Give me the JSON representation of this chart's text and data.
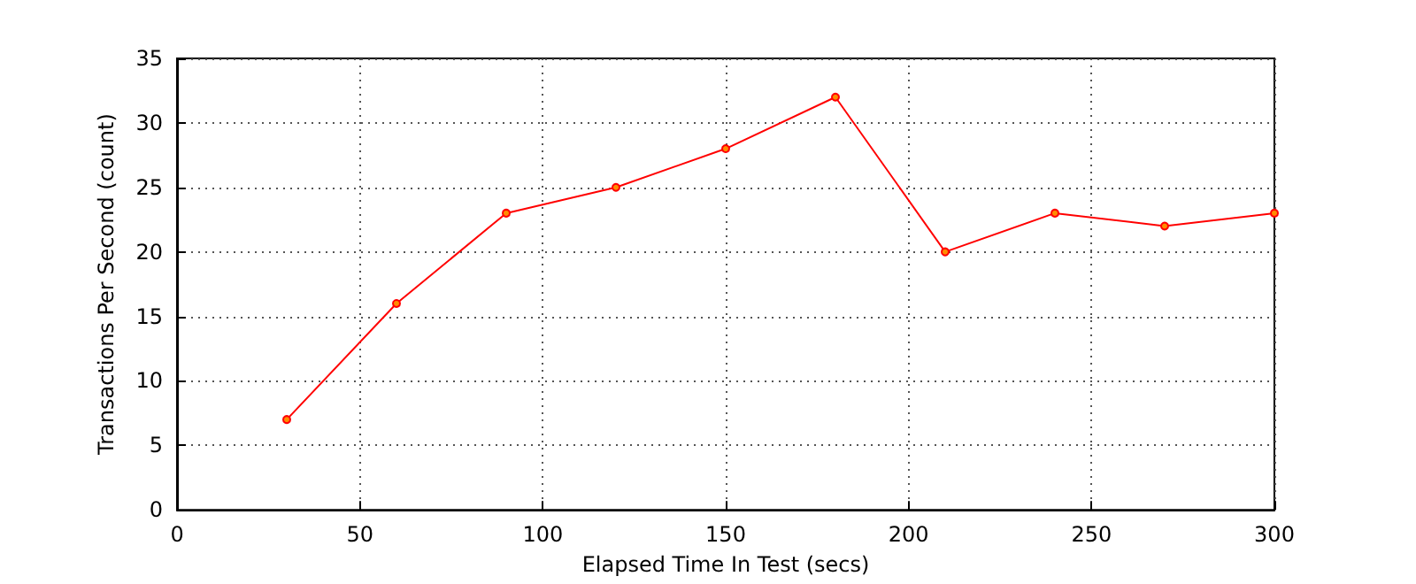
{
  "chart_data": {
    "type": "line",
    "xlabel": "Elapsed Time In Test (secs)",
    "ylabel": "Transactions Per Second (count)",
    "x": [
      30,
      60,
      90,
      120,
      150,
      180,
      210,
      240,
      270,
      300
    ],
    "series": [
      {
        "color": "#ff0000",
        "values": [
          7,
          16,
          23,
          25,
          28,
          32,
          20,
          23,
          22,
          23
        ]
      }
    ],
    "xlim": [
      0,
      300
    ],
    "xticks": [
      0,
      50,
      100,
      150,
      200,
      250,
      300
    ],
    "ylim": [
      0,
      35
    ],
    "yticks": [
      0,
      5,
      10,
      15,
      20,
      25,
      30,
      35
    ],
    "grid": true,
    "marker": "circle",
    "line_style": "solid"
  }
}
